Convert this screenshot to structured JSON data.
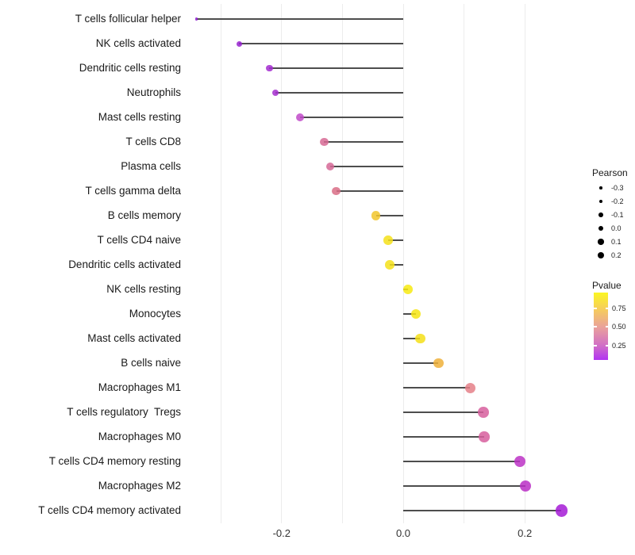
{
  "figure": {
    "background": "#ffffff",
    "gridline_color": "#ececec",
    "stem_color": "#4d4d4d"
  },
  "chart_data": {
    "type": "scatter",
    "subtype": "lollipop",
    "title": "",
    "xlabel": "",
    "ylabel": "",
    "x_axis": {
      "range": [
        -0.36,
        0.29
      ],
      "tick_labels": [
        "-0.2",
        "0.0",
        "0.2"
      ],
      "tick_values": [
        -0.2,
        0.0,
        0.2
      ],
      "gridline_values": [
        -0.3,
        -0.2,
        -0.1,
        0.0,
        0.1,
        0.2
      ],
      "grid": "on"
    },
    "points": [
      {
        "label": "T cells follicular helper",
        "pearson": -0.34,
        "pvalue": 0.08,
        "color": "#8C17CE",
        "radius": 1.7
      },
      {
        "label": "NK cells activated",
        "pearson": -0.27,
        "pvalue": 0.13,
        "color": "#9722CF",
        "radius": 3.5
      },
      {
        "label": "Dendritic cells resting",
        "pearson": -0.22,
        "pvalue": 0.17,
        "color": "#A32BD0",
        "radius": 4.2
      },
      {
        "label": "Neutrophils",
        "pearson": -0.21,
        "pvalue": 0.18,
        "color": "#A52ECF",
        "radius": 4.3
      },
      {
        "label": "Mast cells resting",
        "pearson": -0.17,
        "pvalue": 0.28,
        "color": "#C14AC9",
        "radius": 5.0
      },
      {
        "label": "T cells CD8",
        "pearson": -0.13,
        "pvalue": 0.45,
        "color": "#D76A94",
        "radius": 5.2
      },
      {
        "label": "Plasma cells",
        "pearson": -0.12,
        "pvalue": 0.44,
        "color": "#D66896",
        "radius": 5.3
      },
      {
        "label": "T cells gamma delta",
        "pearson": -0.11,
        "pvalue": 0.47,
        "color": "#D96D86",
        "radius": 5.4
      },
      {
        "label": "B cells memory",
        "pearson": -0.045,
        "pvalue": 0.7,
        "color": "#F1C62B",
        "radius": 5.7
      },
      {
        "label": "T cells CD4 naive",
        "pearson": -0.025,
        "pvalue": 0.86,
        "color": "#F5E01A",
        "radius": 5.8
      },
      {
        "label": "Dendritic cells activated",
        "pearson": -0.022,
        "pvalue": 0.86,
        "color": "#F5E01A",
        "radius": 5.8
      },
      {
        "label": "NK cells resting",
        "pearson": 0.008,
        "pvalue": 0.95,
        "color": "#F7EA10",
        "radius": 5.9
      },
      {
        "label": "Monocytes",
        "pearson": 0.021,
        "pvalue": 0.92,
        "color": "#F6E514",
        "radius": 6.0
      },
      {
        "label": "Mast cells activated",
        "pearson": 0.028,
        "pvalue": 0.9,
        "color": "#F5DF18",
        "radius": 6.1
      },
      {
        "label": "B cells naive",
        "pearson": 0.058,
        "pvalue": 0.73,
        "color": "#EEB03A",
        "radius": 6.3
      },
      {
        "label": "Macrophages M1",
        "pearson": 0.11,
        "pvalue": 0.52,
        "color": "#E58088",
        "radius": 6.5
      },
      {
        "label": "T cells regulatory  Tregs",
        "pearson": 0.132,
        "pvalue": 0.44,
        "color": "#D75F9D",
        "radius": 6.7
      },
      {
        "label": "Macrophages M0",
        "pearson": 0.133,
        "pvalue": 0.44,
        "color": "#D75F9D",
        "radius": 6.7
      },
      {
        "label": "T cells CD4 memory resting",
        "pearson": 0.192,
        "pvalue": 0.22,
        "color": "#BC32C5",
        "radius": 7.0
      },
      {
        "label": "Macrophages M2",
        "pearson": 0.201,
        "pvalue": 0.21,
        "color": "#BA2EC6",
        "radius": 7.1
      },
      {
        "label": "T cells CD4 memory activated",
        "pearson": 0.26,
        "pvalue": 0.12,
        "color": "#A51BD6",
        "radius": 7.6
      }
    ],
    "legend_size": {
      "title": "Pearson",
      "entries": [
        {
          "label": "-0.3",
          "radius": 1.75
        },
        {
          "label": "-0.2",
          "radius": 2.35
        },
        {
          "label": "-0.1",
          "radius": 2.85
        },
        {
          "label": "0.0",
          "radius": 3.35
        },
        {
          "label": "0.1",
          "radius": 3.7
        },
        {
          "label": "0.2",
          "radius": 4.15
        }
      ],
      "dot_color": "#000000"
    },
    "legend_color": {
      "title": "Pvalue",
      "tick_labels": [
        "0.75",
        "0.50",
        "0.25"
      ],
      "range": [
        0.07,
        0.96
      ],
      "gradient_bottom_to_top": [
        "#B133F2",
        "#CF6BC9",
        "#EAA29A",
        "#F6CE5A",
        "#FBF623"
      ]
    }
  }
}
